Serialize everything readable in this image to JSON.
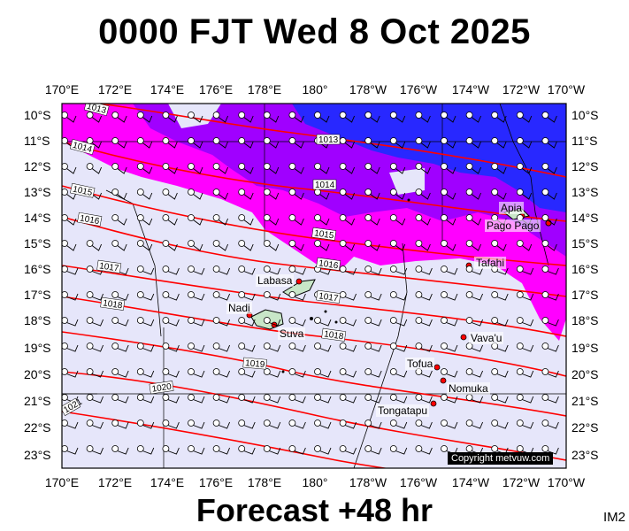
{
  "header": {
    "title": "0000 FJT Wed 8 Oct 2025"
  },
  "footer": {
    "forecast": "Forecast +48 hr",
    "code": "IM2"
  },
  "axes": {
    "lon_labels": [
      "170°E",
      "172°E",
      "174°E",
      "176°E",
      "178°E",
      "180°",
      "178°W",
      "176°W",
      "174°W",
      "172°W",
      "170°W"
    ],
    "lat_labels": [
      "10°S",
      "11°S",
      "12°S",
      "13°S",
      "14°S",
      "15°S",
      "16°S",
      "17°S",
      "18°S",
      "19°S",
      "20°S",
      "21°S",
      "22°S",
      "23°S"
    ]
  },
  "isobars": {
    "color": "#ff0000",
    "labels": [
      "1013",
      "1013",
      "1014",
      "1014",
      "1015",
      "1015",
      "1016",
      "1016",
      "1017",
      "1017",
      "1018",
      "1018",
      "1019",
      "1020",
      "1021"
    ]
  },
  "places": [
    "Apia",
    "Pago Pago",
    "Tafahi",
    "Labasa",
    "Nadi",
    "Suva",
    "Vava'u",
    "Tofua",
    "Nomuka",
    "Tongatapu"
  ],
  "copyright": "Copyright metvuw.com",
  "colors": {
    "background": "#e6e6fa",
    "rain_light": "#ff00ff",
    "rain_mid": "#a000ff",
    "rain_heavy": "#1e1eff",
    "isobar": "#ff0000"
  }
}
